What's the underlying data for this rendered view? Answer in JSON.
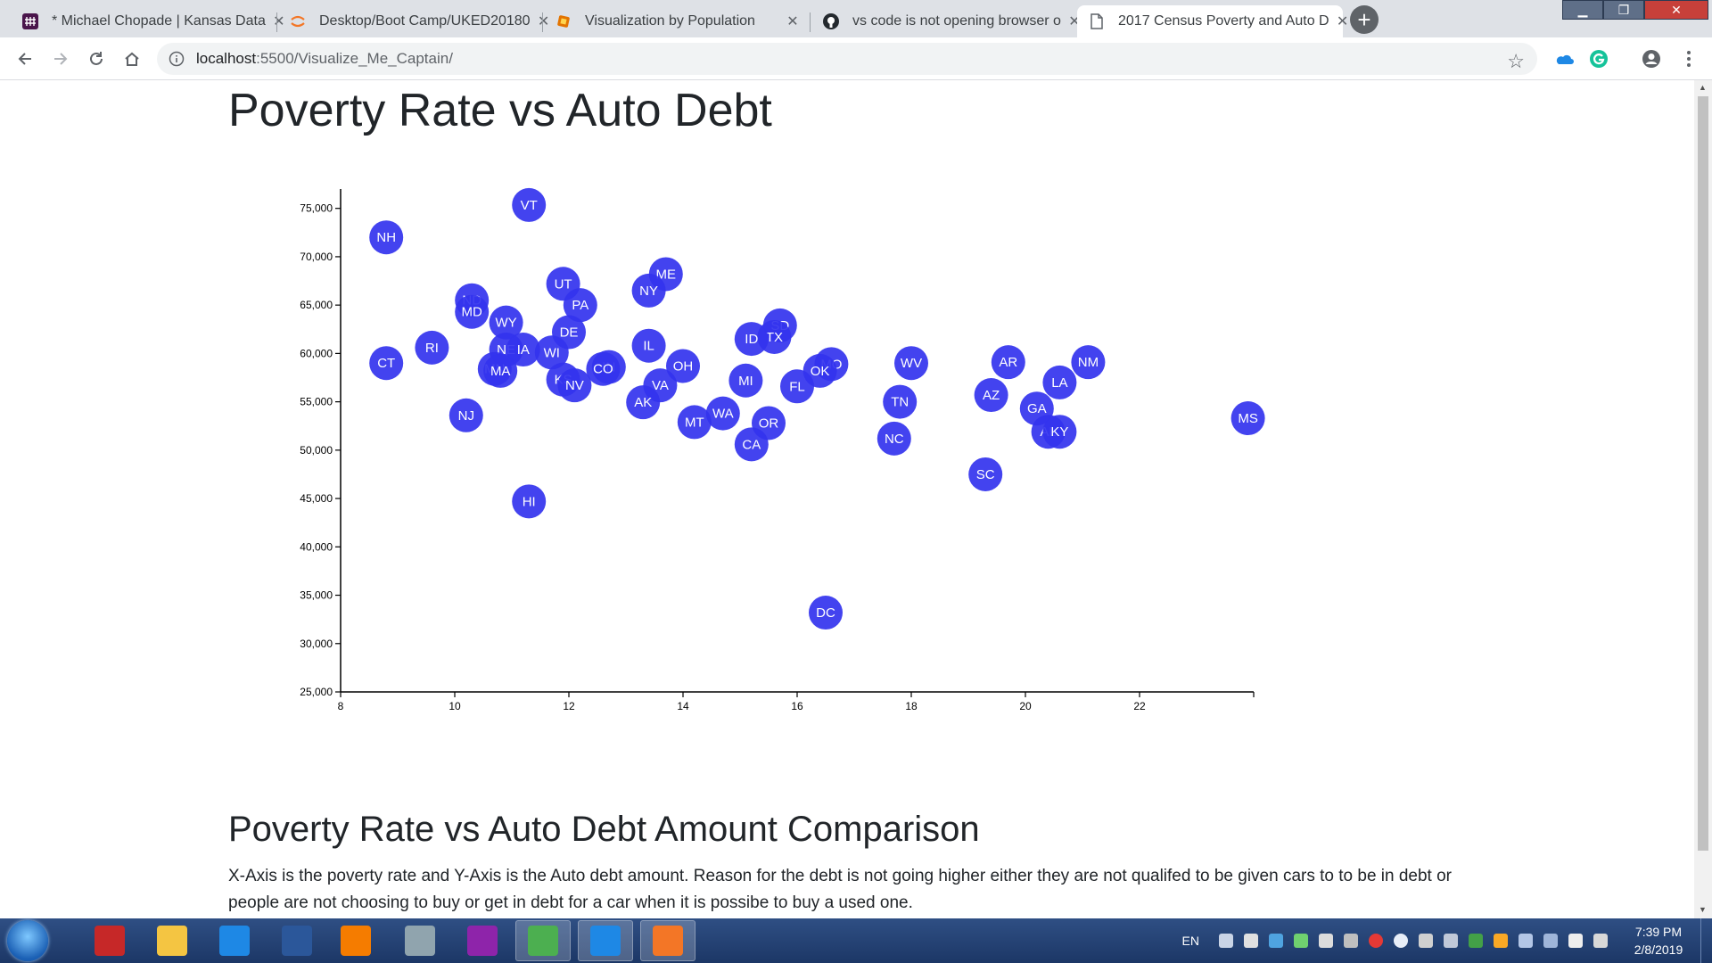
{
  "browser": {
    "tabs": [
      {
        "title": "* Michael Chopade | Kansas Data",
        "icon": "slack-icon",
        "color": "#4a154b"
      },
      {
        "title": "Desktop/Boot Camp/UKED20180",
        "icon": "jupyter-icon",
        "color": "#f37626"
      },
      {
        "title": "Visualization by Population",
        "icon": "codepen-icon",
        "color": "#e37400"
      },
      {
        "title": "vs code is not opening browser o",
        "icon": "github-icon",
        "color": "#24292e"
      },
      {
        "title": "2017 Census Poverty and Auto D",
        "icon": "page-icon",
        "color": "#5f6368"
      }
    ],
    "active_tab": 4,
    "url_host": "localhost",
    "url_path": ":5500/Visualize_Me_Captain/"
  },
  "page": {
    "title": "Poverty Rate vs Auto Debt",
    "section_heading": "Poverty Rate vs Auto Debt Amount Comparison",
    "section_text": "X-Axis is the poverty rate and Y-Axis is the Auto debt amount. Reason for the debt is not going higher either they are not qualifed to be given cars to to be in debt or people are not choosing to buy or get in debt for a car when it is possibe to buy a used one."
  },
  "chart_data": {
    "type": "scatter",
    "xlim": [
      8,
      24
    ],
    "ylim": [
      25000,
      77000
    ],
    "xticks": [
      8,
      10,
      12,
      14,
      16,
      18,
      20,
      22
    ],
    "yticks": [
      25000,
      30000,
      35000,
      40000,
      45000,
      50000,
      55000,
      60000,
      65000,
      70000,
      75000
    ],
    "xtick_labels": [
      "8",
      "10",
      "12",
      "14",
      "16",
      "18",
      "20",
      "22"
    ],
    "ytick_labels": [
      "25,000",
      "30,000",
      "35,000",
      "40,000",
      "45,000",
      "50,000",
      "55,000",
      "60,000",
      "65,000",
      "70,000",
      "75,000"
    ],
    "point_color": "#3333ee",
    "points": [
      {
        "label": "VT",
        "x": 11.3,
        "y": 75350
      },
      {
        "label": "NH",
        "x": 8.8,
        "y": 72000
      },
      {
        "label": "ME",
        "x": 13.7,
        "y": 68200
      },
      {
        "label": "UT",
        "x": 11.9,
        "y": 67200
      },
      {
        "label": "NY",
        "x": 13.4,
        "y": 66500
      },
      {
        "label": "ND",
        "x": 10.3,
        "y": 65500
      },
      {
        "label": "PA",
        "x": 12.2,
        "y": 65000
      },
      {
        "label": "MD",
        "x": 10.3,
        "y": 64300
      },
      {
        "label": "WY",
        "x": 10.9,
        "y": 63200
      },
      {
        "label": "SD",
        "x": 15.7,
        "y": 62900
      },
      {
        "label": "DE",
        "x": 12.0,
        "y": 62200
      },
      {
        "label": "TX",
        "x": 15.6,
        "y": 61700
      },
      {
        "label": "ID",
        "x": 15.2,
        "y": 61500
      },
      {
        "label": "IL",
        "x": 13.4,
        "y": 60800
      },
      {
        "label": "RI",
        "x": 9.6,
        "y": 60600
      },
      {
        "label": "NE",
        "x": 10.9,
        "y": 60400
      },
      {
        "label": "IA",
        "x": 11.2,
        "y": 60400
      },
      {
        "label": "WI",
        "x": 11.7,
        "y": 60100
      },
      {
        "label": "CT",
        "x": 8.8,
        "y": 59000
      },
      {
        "label": "WV",
        "x": 18.0,
        "y": 59000
      },
      {
        "label": "AR",
        "x": 19.7,
        "y": 59100
      },
      {
        "label": "NM",
        "x": 21.1,
        "y": 59100
      },
      {
        "label": "MO",
        "x": 16.6,
        "y": 58900
      },
      {
        "label": "OH",
        "x": 14.0,
        "y": 58700
      },
      {
        "label": "IN",
        "x": 12.7,
        "y": 58600
      },
      {
        "label": "MN",
        "x": 10.7,
        "y": 58400
      },
      {
        "label": "CO",
        "x": 12.6,
        "y": 58400
      },
      {
        "label": "MA",
        "x": 10.8,
        "y": 58200
      },
      {
        "label": "OK",
        "x": 16.4,
        "y": 58200
      },
      {
        "label": "KS",
        "x": 11.9,
        "y": 57300
      },
      {
        "label": "MI",
        "x": 15.1,
        "y": 57200
      },
      {
        "label": "LA",
        "x": 20.6,
        "y": 57000
      },
      {
        "label": "NV",
        "x": 12.1,
        "y": 56700
      },
      {
        "label": "VA",
        "x": 13.6,
        "y": 56700
      },
      {
        "label": "FL",
        "x": 16.0,
        "y": 56600
      },
      {
        "label": "AZ",
        "x": 19.4,
        "y": 55700
      },
      {
        "label": "TN",
        "x": 17.8,
        "y": 55000
      },
      {
        "label": "AK",
        "x": 13.3,
        "y": 54950
      },
      {
        "label": "GA",
        "x": 20.2,
        "y": 54300
      },
      {
        "label": "NJ",
        "x": 10.2,
        "y": 53600
      },
      {
        "label": "WA",
        "x": 14.7,
        "y": 53800
      },
      {
        "label": "MS",
        "x": 23.9,
        "y": 53300
      },
      {
        "label": "OR",
        "x": 15.5,
        "y": 52800
      },
      {
        "label": "MT",
        "x": 14.2,
        "y": 52900
      },
      {
        "label": "AL",
        "x": 20.4,
        "y": 51900
      },
      {
        "label": "KY",
        "x": 20.6,
        "y": 51900
      },
      {
        "label": "NC",
        "x": 17.7,
        "y": 51200
      },
      {
        "label": "CA",
        "x": 15.2,
        "y": 50600
      },
      {
        "label": "SC",
        "x": 19.3,
        "y": 47500
      },
      {
        "label": "HI",
        "x": 11.3,
        "y": 44700
      },
      {
        "label": "DC",
        "x": 16.5,
        "y": 33200
      }
    ]
  },
  "taskbar": {
    "apps": [
      {
        "icon": "remote-desktop-icon",
        "color": "#c62828"
      },
      {
        "icon": "file-explorer-icon",
        "color": "#f4c542"
      },
      {
        "icon": "internet-explorer-icon",
        "color": "#1e88e5"
      },
      {
        "icon": "word-icon",
        "color": "#2b579a"
      },
      {
        "icon": "media-player-icon",
        "color": "#f57c00"
      },
      {
        "icon": "photo-viewer-icon",
        "color": "#90a4ae"
      },
      {
        "icon": "winrar-icon",
        "color": "#8e24aa"
      },
      {
        "icon": "chrome-icon",
        "color": "#4caf50"
      },
      {
        "icon": "vscode-icon",
        "color": "#1e88e5"
      },
      {
        "icon": "jupyter-icon",
        "color": "#f37626"
      }
    ],
    "active_apps": [
      7,
      8,
      9
    ],
    "language": "EN",
    "time": "7:39 PM",
    "date": "2/8/2019"
  }
}
